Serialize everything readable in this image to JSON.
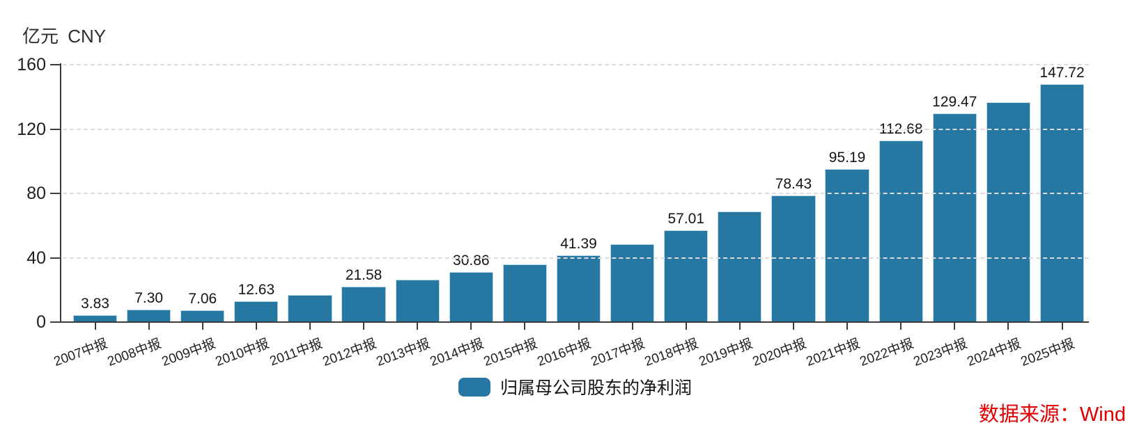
{
  "chart_data": {
    "type": "bar",
    "title": "",
    "ylabel": "亿元 CNY",
    "xlabel": "",
    "ylim": [
      0,
      160
    ],
    "yticks": [
      0,
      40,
      80,
      120,
      160
    ],
    "grid": "horizontal-dashed",
    "legend_position": "bottom-center",
    "categories": [
      "2007中报",
      "2008中报",
      "2009中报",
      "2010中报",
      "2011中报",
      "2012中报",
      "2013中报",
      "2014中报",
      "2015中报",
      "2016中报",
      "2017中报",
      "2018中报",
      "2019中报",
      "2020中报",
      "2021中报",
      "2022中报",
      "2023中报",
      "2024中报",
      "2025中报"
    ],
    "series": [
      {
        "name": "归属母公司股东的净利润",
        "color": "#2777a3",
        "values": [
          3.83,
          7.3,
          7.06,
          12.63,
          16.6,
          21.58,
          25.9,
          30.86,
          35.7,
          41.39,
          48.1,
          57.01,
          68.6,
          78.43,
          95.19,
          112.68,
          129.47,
          136.7,
          147.72
        ],
        "value_labels": [
          "3.83",
          "7.30",
          "7.06",
          "12.63",
          null,
          "21.58",
          null,
          "30.86",
          null,
          "41.39",
          null,
          "57.01",
          null,
          "78.43",
          "95.19",
          "112.68",
          "129.47",
          null,
          "147.72"
        ],
        "unlabeled_bar_indices": [
          4,
          6,
          8,
          10,
          12,
          17
        ]
      }
    ],
    "source_note": "数据来源：Wind",
    "colors": {
      "bar": "#2777a3",
      "source_note": "#e00000",
      "axis": "#3c3c3c",
      "gridline": "#dcdcdc",
      "tick_label": "#1f1f1f",
      "value_label": "#141414"
    }
  }
}
